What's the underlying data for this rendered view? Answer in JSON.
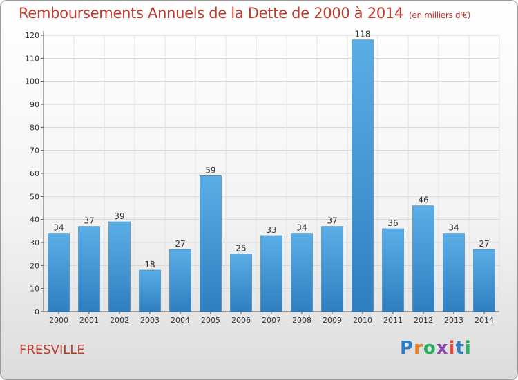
{
  "title": "Remboursements Annuels de la Dette de 2000 à 2014",
  "title_unit": "(en milliers d'€)",
  "town": "FRESVILLE",
  "logo": [
    "P",
    "r",
    "o",
    "x",
    "i",
    "t",
    "i"
  ],
  "colors": {
    "bar_top": "#5aaee6",
    "bar_bottom": "#2f7fc0",
    "title": "#c0392b"
  },
  "chart_data": {
    "type": "bar",
    "title": "Remboursements Annuels de la Dette de 2000 à 2014",
    "categories": [
      "2000",
      "2001",
      "2002",
      "2003",
      "2004",
      "2005",
      "2006",
      "2007",
      "2008",
      "2009",
      "2010",
      "2011",
      "2012",
      "2013",
      "2014"
    ],
    "values": [
      34,
      37,
      39,
      18,
      27,
      59,
      25,
      33,
      34,
      37,
      118,
      36,
      46,
      34,
      27
    ],
    "ylim": [
      0,
      120
    ],
    "yticks": [
      0,
      10,
      20,
      30,
      40,
      50,
      60,
      70,
      80,
      90,
      100,
      110,
      120
    ],
    "grid": true,
    "legend": "none"
  }
}
